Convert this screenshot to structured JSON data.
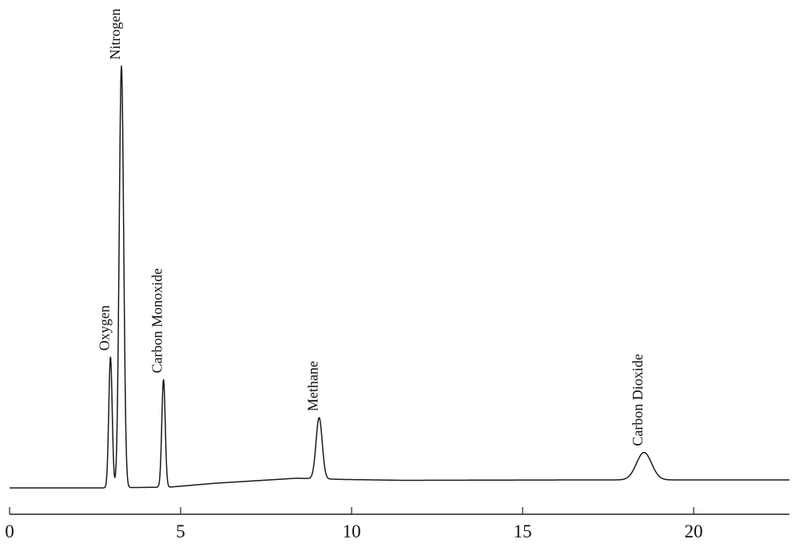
{
  "chart_data": {
    "type": "line",
    "title": "",
    "xlabel": "",
    "ylabel": "",
    "xlim": [
      0,
      22.8
    ],
    "ylim": [
      0,
      100
    ],
    "xticks": [
      0,
      5,
      10,
      15,
      20
    ],
    "xtick_labels": [
      "0",
      "5",
      "10",
      "15",
      "20"
    ],
    "grid": false,
    "legend": "none",
    "line_color": "#1a1a1a",
    "baseline": [
      {
        "x": 0.0,
        "y": 0.0
      },
      {
        "x": 2.8,
        "y": 0.0
      },
      {
        "x": 4.7,
        "y": 0.2
      },
      {
        "x": 6.0,
        "y": 1.1
      },
      {
        "x": 8.4,
        "y": 2.3
      },
      {
        "x": 9.8,
        "y": 2.0
      },
      {
        "x": 11.5,
        "y": 1.8
      },
      {
        "x": 17.0,
        "y": 1.9
      },
      {
        "x": 22.8,
        "y": 1.9
      }
    ],
    "peaks": [
      {
        "label": "Oxygen",
        "x": 2.95,
        "height": 31.0,
        "width": 0.05
      },
      {
        "label": "Nitrogen",
        "x": 3.27,
        "height": 100.0,
        "width": 0.065
      },
      {
        "label": "Carbon Monoxide",
        "x": 4.5,
        "height": 25.5,
        "width": 0.05
      },
      {
        "label": "Methane",
        "x": 9.05,
        "height": 14.5,
        "width": 0.09
      },
      {
        "label": "Carbon Dioxide",
        "x": 18.55,
        "height": 6.5,
        "width": 0.22
      }
    ]
  }
}
